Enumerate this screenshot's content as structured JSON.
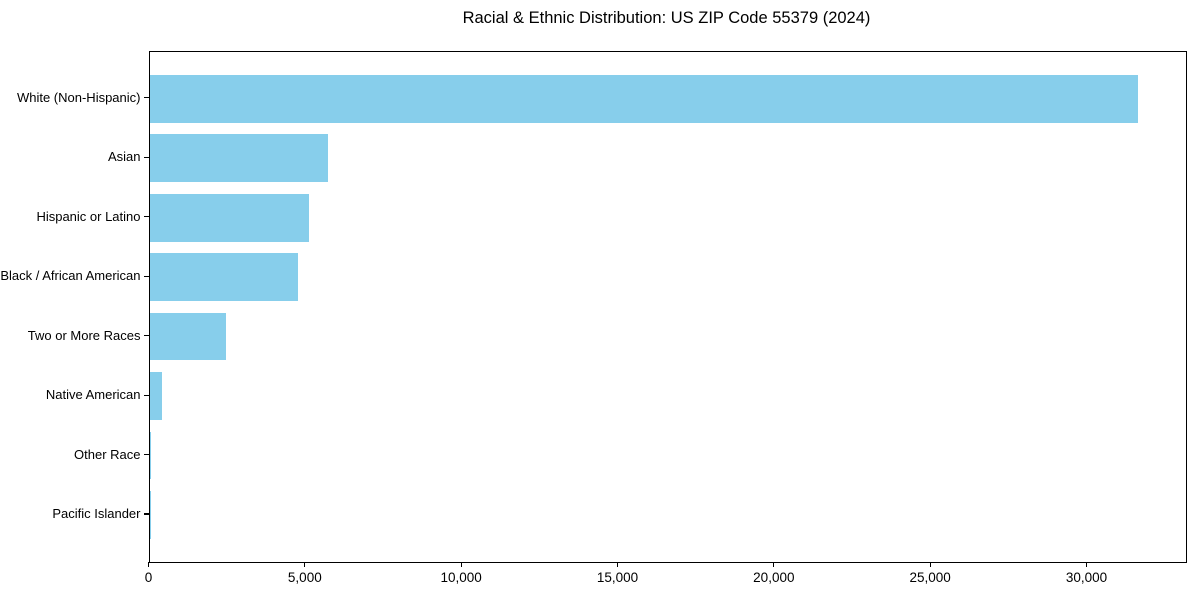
{
  "chart_data": {
    "type": "bar",
    "orientation": "horizontal",
    "title": "Racial & Ethnic Distribution: US ZIP Code 55379 (2024)",
    "categories": [
      "White (Non-Hispanic)",
      "Asian",
      "Hispanic or Latino",
      "Black / African American",
      "Two or More Races",
      "Native American",
      "Other Race",
      "Pacific Islander"
    ],
    "values": [
      31600,
      5700,
      5100,
      4750,
      2450,
      400,
      50,
      10
    ],
    "xlabel": "",
    "ylabel": "",
    "xlim": [
      0,
      33150
    ],
    "xticks": [
      {
        "value": 0,
        "label": "0"
      },
      {
        "value": 5000,
        "label": "5,000"
      },
      {
        "value": 10000,
        "label": "10,000"
      },
      {
        "value": 15000,
        "label": "15,000"
      },
      {
        "value": 20000,
        "label": "20,000"
      },
      {
        "value": 25000,
        "label": "25,000"
      },
      {
        "value": 30000,
        "label": "30,000"
      }
    ],
    "grid": false,
    "legend": null,
    "bar_color": "#87CEEB",
    "axis_color": "#000000",
    "text_color": "#000000",
    "background_color": "#FFFFFF"
  }
}
